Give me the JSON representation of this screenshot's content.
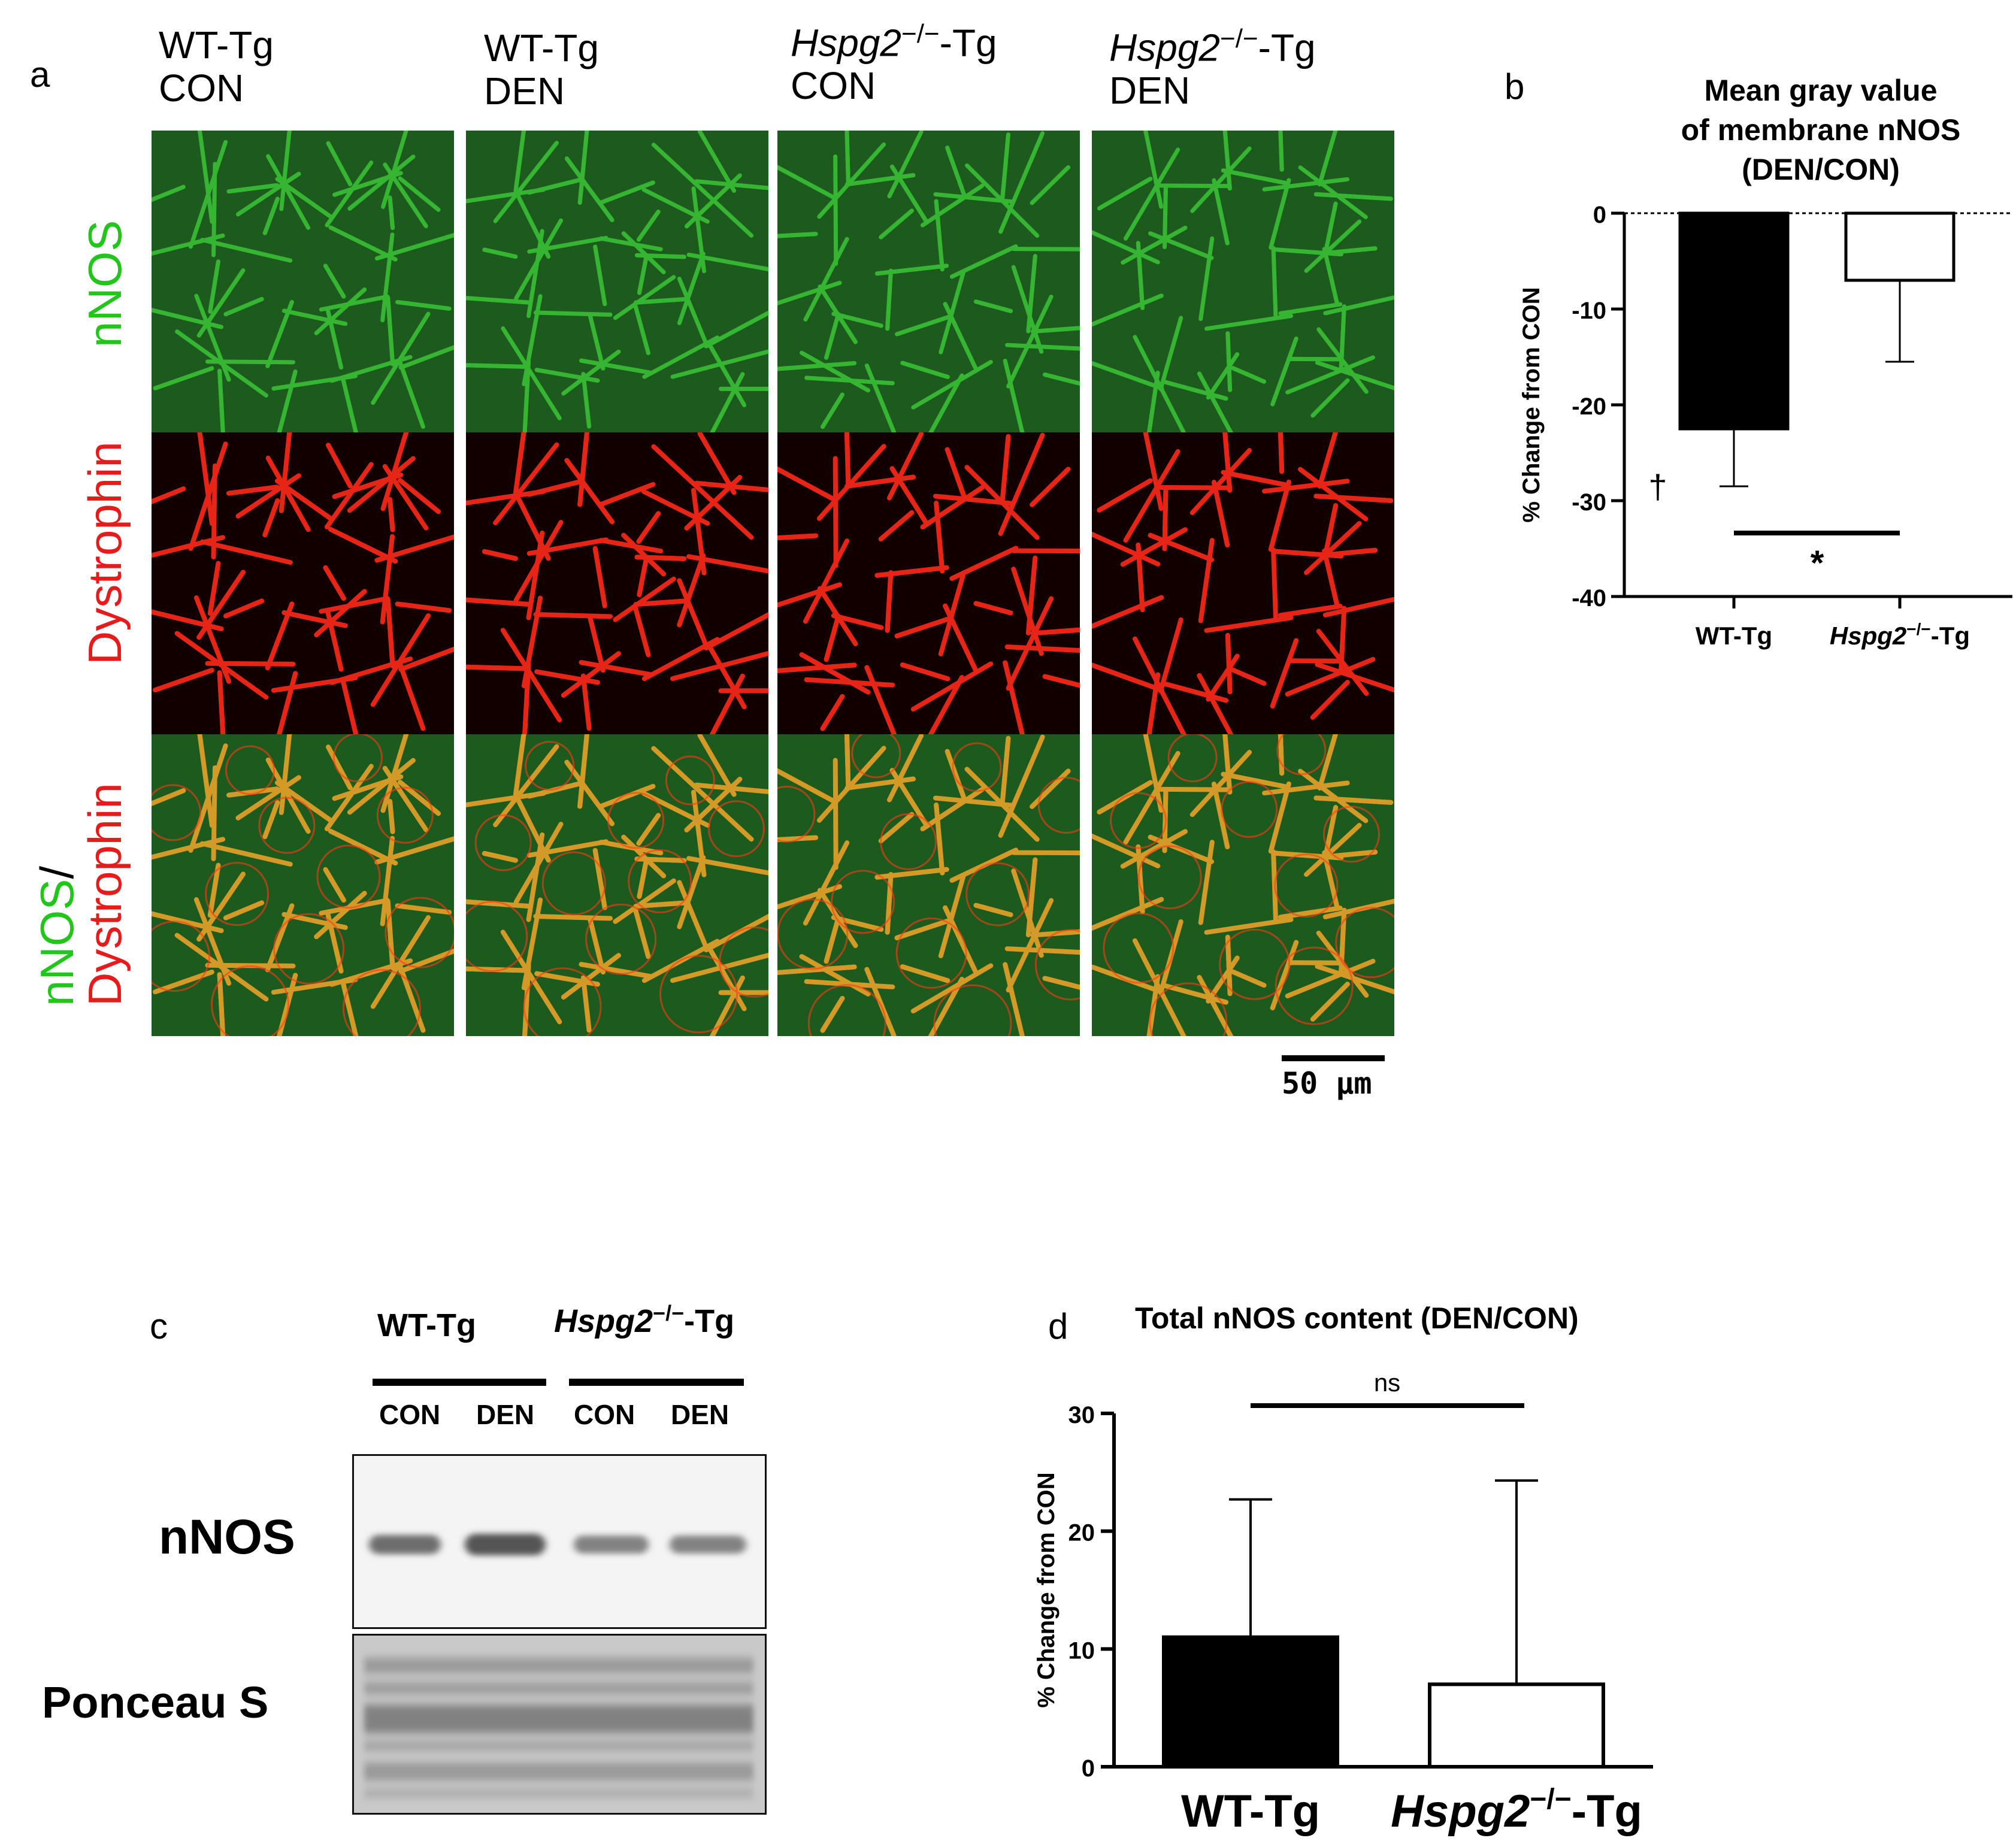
{
  "panel_a": {
    "letter": "a",
    "columns": [
      {
        "gene": "WT",
        "suffix": "-Tg",
        "sup": "",
        "condition": "CON",
        "italic": false
      },
      {
        "gene": "WT",
        "suffix": "-Tg",
        "sup": "",
        "condition": "DEN",
        "italic": false
      },
      {
        "gene": "Hspg2",
        "suffix": "-Tg",
        "sup": "−/−",
        "condition": "CON",
        "italic": true
      },
      {
        "gene": "Hspg2",
        "suffix": "-Tg",
        "sup": "−/−",
        "condition": "DEN",
        "italic": true
      }
    ],
    "rows": {
      "nnos": "nNOS",
      "dystrophin": "Dystrophin",
      "merge_green": "nNOS",
      "merge_slash": "/",
      "merge_red": "Dystrophin"
    },
    "scale_bar": "50 µm",
    "colors": {
      "green": "#22c51a",
      "red": "#e61b1b"
    }
  },
  "panel_b": {
    "letter": "b",
    "title_line1": "Mean gray value",
    "title_line2": "of membrane nNOS",
    "title_line3": "(DEN/CON)",
    "ylabel": "% Change from CON",
    "dagger": "†",
    "star": "*",
    "chart_data": {
      "type": "bar",
      "categories": [
        "WT-Tg",
        "Hspg2−/−-Tg"
      ],
      "values": [
        -22.5,
        -7
      ],
      "errors": [
        6,
        8.5
      ],
      "ylim": [
        -40,
        0
      ],
      "yticks": [
        "0",
        "-10",
        "-20",
        "-30",
        "-40"
      ],
      "tick_values": [
        0,
        -10,
        -20,
        -30,
        -40
      ],
      "fills": [
        "#000000",
        "#ffffff"
      ]
    },
    "cat_labels": [
      {
        "gene": "WT",
        "sup": "",
        "suffix": "-Tg"
      },
      {
        "gene": "Hspg2",
        "sup": "−/−",
        "suffix": "-Tg"
      }
    ]
  },
  "panel_c": {
    "letter": "c",
    "groups": [
      {
        "gene": "WT",
        "sup": "",
        "suffix": "-Tg"
      },
      {
        "gene": "Hspg2",
        "sup": "−/−",
        "suffix": "-Tg"
      }
    ],
    "lanes": [
      "CON",
      "DEN",
      "CON",
      "DEN"
    ],
    "blot_labels": {
      "nnos": "nNOS",
      "ponceau": "Ponceau S"
    }
  },
  "panel_d": {
    "letter": "d",
    "title": "Total nNOS content (DEN/CON)",
    "ylabel": "% Change from CON",
    "ns": "ns",
    "chart_data": {
      "type": "bar",
      "categories": [
        "WT-Tg",
        "Hspg2−/−-Tg"
      ],
      "values": [
        11,
        7
      ],
      "errors": [
        11.7,
        17.3
      ],
      "ylim": [
        0,
        30
      ],
      "yticks": [
        "0",
        "10",
        "20",
        "30"
      ],
      "tick_values": [
        0,
        10,
        20,
        30
      ],
      "fills": [
        "#000000",
        "#ffffff"
      ]
    },
    "cat_labels": [
      {
        "gene": "WT",
        "sup": "",
        "suffix": "-Tg"
      },
      {
        "gene": "Hspg2",
        "sup": "−/−",
        "suffix": "-Tg"
      }
    ]
  }
}
